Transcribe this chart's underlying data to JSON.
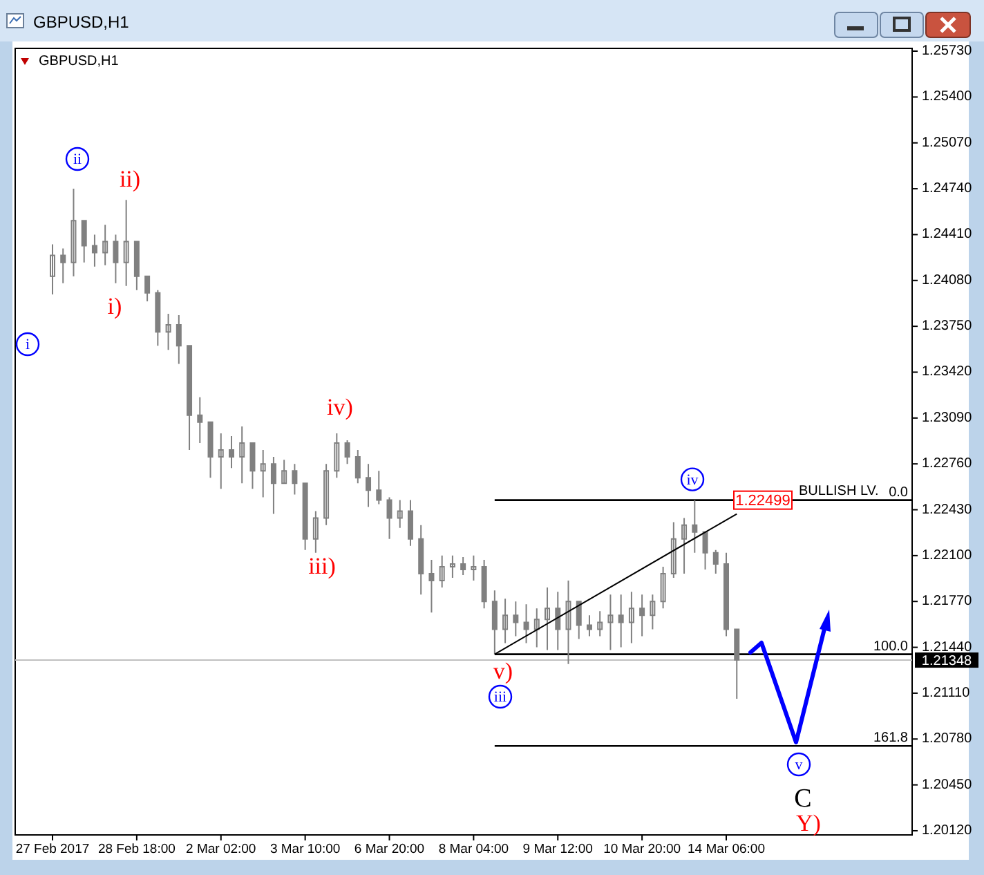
{
  "chart_data": {
    "type": "candlestick",
    "title": "GBPUSD,H1",
    "subtitle": "GBPUSD,H1",
    "categories": [
      "27 Feb 2017",
      null,
      null,
      null,
      null,
      null,
      null,
      null,
      "28 Feb 18:00",
      null,
      null,
      null,
      null,
      null,
      null,
      null,
      "2 Mar 02:00",
      null,
      null,
      null,
      null,
      null,
      null,
      null,
      "3 Mar 10:00",
      null,
      null,
      null,
      null,
      null,
      null,
      null,
      "6 Mar 20:00",
      null,
      null,
      null,
      null,
      null,
      null,
      null,
      "8 Mar 04:00",
      null,
      null,
      null,
      null,
      null,
      null,
      null,
      "9 Mar 12:00",
      null,
      null,
      null,
      null,
      null,
      null,
      null,
      "10 Mar 20:00",
      null,
      null,
      null,
      null,
      null,
      null,
      null,
      "14 Mar 06:00",
      null,
      null,
      null,
      null,
      null,
      null,
      null,
      null,
      null,
      null,
      null,
      null,
      null,
      null,
      null,
      null,
      null
    ],
    "series": [
      {
        "color": "#808080",
        "ohlc": [
          [
            1.2411,
            1.2434,
            1.2398,
            1.2426
          ],
          [
            1.2426,
            1.2431,
            1.2406,
            1.2421
          ],
          [
            1.2421,
            1.2474,
            1.2411,
            1.2451
          ],
          [
            1.2451,
            1.2451,
            1.2421,
            1.2433
          ],
          [
            1.2433,
            1.2441,
            1.2418,
            1.2428
          ],
          [
            1.2428,
            1.2448,
            1.2419,
            1.2436
          ],
          [
            1.2436,
            1.2441,
            1.2406,
            1.2421
          ],
          [
            1.2421,
            1.2466,
            1.2404,
            1.2436
          ],
          [
            1.2436,
            1.2436,
            1.2401,
            1.2411
          ],
          [
            1.2411,
            1.2411,
            1.2393,
            1.2399
          ],
          [
            1.2399,
            1.2401,
            1.2361,
            1.2371
          ],
          [
            1.2371,
            1.2384,
            1.2358,
            1.2376
          ],
          [
            1.2376,
            1.2383,
            1.2348,
            1.2361
          ],
          [
            1.2361,
            1.2361,
            1.2286,
            1.2311
          ],
          [
            1.2311,
            1.2324,
            1.2291,
            1.2306
          ],
          [
            1.2306,
            1.2306,
            1.2266,
            1.2281
          ],
          [
            1.2281,
            1.2298,
            1.2258,
            1.2286
          ],
          [
            1.2286,
            1.2296,
            1.2273,
            1.2281
          ],
          [
            1.2281,
            1.2303,
            1.2262,
            1.2291
          ],
          [
            1.2291,
            1.2291,
            1.2258,
            1.2271
          ],
          [
            1.2271,
            1.2286,
            1.2252,
            1.2276
          ],
          [
            1.2276,
            1.2281,
            1.224,
            1.2262
          ],
          [
            1.2262,
            1.2279,
            1.2262,
            1.2271
          ],
          [
            1.2271,
            1.2276,
            1.2254,
            1.2262
          ],
          [
            1.2262,
            1.2262,
            1.2214,
            1.2222
          ],
          [
            1.2222,
            1.2242,
            1.2212,
            1.2237
          ],
          [
            1.2237,
            1.2276,
            1.2232,
            1.2271
          ],
          [
            1.2271,
            1.2298,
            1.2266,
            1.2291
          ],
          [
            1.2291,
            1.2293,
            1.2276,
            1.2281
          ],
          [
            1.2281,
            1.2286,
            1.2262,
            1.2266
          ],
          [
            1.2266,
            1.2276,
            1.2245,
            1.2257
          ],
          [
            1.2257,
            1.2271,
            1.2247,
            1.225
          ],
          [
            1.225,
            1.2252,
            1.2222,
            1.2237
          ],
          [
            1.2237,
            1.225,
            1.223,
            1.2242
          ],
          [
            1.2242,
            1.225,
            1.2217,
            1.2222
          ],
          [
            1.2222,
            1.2232,
            1.2182,
            1.2197
          ],
          [
            1.2197,
            1.2207,
            1.2169,
            1.2192
          ],
          [
            1.2192,
            1.221,
            1.2187,
            1.2202
          ],
          [
            1.2202,
            1.221,
            1.2194,
            1.2204
          ],
          [
            1.2204,
            1.2209,
            1.2196,
            1.22
          ],
          [
            1.22,
            1.221,
            1.2192,
            1.2202
          ],
          [
            1.2202,
            1.2207,
            1.2172,
            1.2177
          ],
          [
            1.2177,
            1.2185,
            1.2139,
            1.2157
          ],
          [
            1.2157,
            1.2179,
            1.2147,
            1.2167
          ],
          [
            1.2167,
            1.2177,
            1.2152,
            1.2162
          ],
          [
            1.2162,
            1.2175,
            1.2147,
            1.2157
          ],
          [
            1.2157,
            1.2172,
            1.2144,
            1.2164
          ],
          [
            1.2164,
            1.2187,
            1.2142,
            1.2172
          ],
          [
            1.2172,
            1.2184,
            1.2142,
            1.2157
          ],
          [
            1.2157,
            1.2192,
            1.2132,
            1.2177
          ],
          [
            1.2177,
            1.2177,
            1.215,
            1.216
          ],
          [
            1.216,
            1.2167,
            1.2152,
            1.2157
          ],
          [
            1.2157,
            1.217,
            1.2152,
            1.2162
          ],
          [
            1.2162,
            1.2182,
            1.2142,
            1.2167
          ],
          [
            1.2167,
            1.2182,
            1.2144,
            1.2162
          ],
          [
            1.2162,
            1.2184,
            1.2147,
            1.2172
          ],
          [
            1.2172,
            1.2182,
            1.2152,
            1.2167
          ],
          [
            1.2167,
            1.2182,
            1.2157,
            1.2177
          ],
          [
            1.2177,
            1.2202,
            1.2172,
            1.2197
          ],
          [
            1.2197,
            1.2234,
            1.2194,
            1.2222
          ],
          [
            1.2222,
            1.2237,
            1.2197,
            1.2232
          ],
          [
            1.2232,
            1.22499,
            1.2212,
            1.2227
          ],
          [
            1.2227,
            1.2227,
            1.22,
            1.2212
          ],
          [
            1.2212,
            1.2214,
            1.2197,
            1.2204
          ],
          [
            1.2204,
            1.2212,
            1.2152,
            1.2157
          ],
          [
            1.2157,
            1.2157,
            1.2107,
            1.2135
          ],
          null,
          null,
          null,
          null,
          null,
          null,
          null,
          null,
          null,
          null,
          null,
          null,
          null,
          null,
          null,
          null
        ]
      },
      {
        "type": "line",
        "color": "#000000",
        "values": [
          null,
          null,
          null,
          null,
          null,
          null,
          null,
          null,
          null,
          null,
          null,
          null,
          null,
          null,
          null,
          null,
          null,
          null,
          null,
          null,
          null,
          null,
          null,
          null,
          null,
          null,
          null,
          null,
          null,
          null,
          null,
          null,
          null,
          null,
          null,
          null,
          null,
          null,
          null,
          null,
          null,
          null,
          1.2139,
          null,
          null,
          null,
          null,
          null,
          null,
          null,
          null,
          null,
          null,
          null,
          null,
          null,
          null,
          null,
          null,
          null,
          null,
          null,
          null,
          null,
          null,
          1.224,
          null,
          null,
          null,
          null,
          null,
          null,
          null,
          null,
          null,
          null,
          null,
          null,
          null,
          null,
          null,
          null
        ]
      }
    ],
    "ylim": [
      1.2009,
      1.2575
    ],
    "yticks": [
      {
        "value": 1.2573,
        "label": "1.25730"
      },
      {
        "value": 1.254,
        "label": "1.25400"
      },
      {
        "value": 1.2507,
        "label": "1.25070"
      },
      {
        "value": 1.2474,
        "label": "1.24740"
      },
      {
        "value": 1.2441,
        "label": "1.24410"
      },
      {
        "value": 1.2408,
        "label": "1.24080"
      },
      {
        "value": 1.2375,
        "label": "1.23750"
      },
      {
        "value": 1.2342,
        "label": "1.23420"
      },
      {
        "value": 1.2309,
        "label": "1.23090"
      },
      {
        "value": 1.2276,
        "label": "1.22760"
      },
      {
        "value": 1.2243,
        "label": "1.22430"
      },
      {
        "value": 1.221,
        "label": "1.22100"
      },
      {
        "value": 1.2177,
        "label": "1.21770"
      },
      {
        "value": 1.2144,
        "label": "1.21440"
      },
      {
        "value": 1.2111,
        "label": "1.21110"
      },
      {
        "value": 1.2078,
        "label": "1.20780"
      },
      {
        "value": 1.2045,
        "label": "1.20450"
      },
      {
        "value": 1.2012,
        "label": "1.20120"
      }
    ],
    "ref_lines": [
      {
        "axis": "y",
        "value": 1.22499,
        "color": "#000000"
      },
      {
        "axis": "y",
        "value": 1.2139,
        "color": "#000000"
      },
      {
        "axis": "y",
        "value": 1.2073,
        "color": "#000000"
      },
      {
        "axis": "y",
        "value": 1.21348,
        "label": "1.21348",
        "color": "#c0c0c0"
      }
    ],
    "annotations": [
      "ii",
      "ii)",
      "i)",
      "i",
      "iv)",
      "iii)",
      "v)",
      "iii",
      {
        "text": "iv",
        "y": 1.22499
      },
      "v",
      "C",
      "Y)",
      {
        "text": "BULLISH LV.",
        "y": 1.22499
      },
      {
        "text": "1.22499",
        "y": 1.22499
      },
      {
        "text": "0.0",
        "y": 1.22499
      },
      {
        "text": "100.0",
        "y": 1.2139
      },
      {
        "text": "161.8",
        "y": 1.2073
      }
    ]
  }
}
